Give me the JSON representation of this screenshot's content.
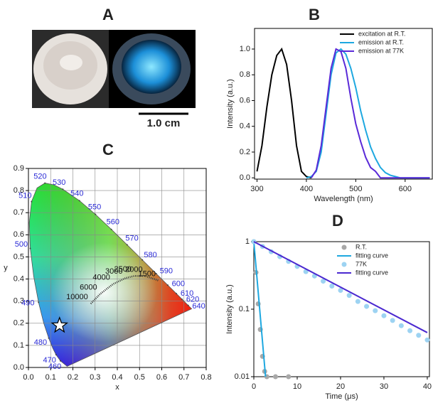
{
  "chart_data": [
    {
      "type": "photo",
      "label": "A",
      "scale_bar": "1.0 cm"
    },
    {
      "type": "line",
      "label": "B",
      "xlabel": "Wavelength (nm)",
      "ylabel": "Intensity (a.u.)",
      "x": [
        300,
        310,
        320,
        330,
        340,
        350,
        360,
        370,
        380,
        390,
        400,
        410,
        420,
        430,
        440,
        450,
        460,
        470,
        480,
        490,
        500,
        510,
        520,
        530,
        540,
        550,
        560,
        570,
        580,
        590,
        600,
        610,
        620,
        630,
        640,
        650
      ],
      "series": [
        {
          "name": "excitation at R.T.",
          "color": "#000000",
          "values": [
            0.05,
            0.25,
            0.55,
            0.8,
            0.95,
            1.0,
            0.88,
            0.6,
            0.25,
            0.05,
            0.01,
            0,
            null,
            null,
            null,
            null,
            null,
            null,
            null,
            null,
            null,
            null,
            null,
            null,
            null,
            null,
            null,
            null,
            null,
            null,
            null,
            null,
            null,
            null,
            null,
            null
          ]
        },
        {
          "name": "emission at R.T.",
          "color": "#1ea8e0",
          "values": [
            null,
            null,
            null,
            null,
            null,
            null,
            null,
            null,
            null,
            null,
            0,
            0.01,
            0.05,
            0.2,
            0.5,
            0.8,
            0.97,
            1.0,
            0.96,
            0.85,
            0.7,
            0.52,
            0.37,
            0.24,
            0.15,
            0.08,
            0.04,
            0.02,
            0.01,
            0,
            0,
            0,
            0,
            0,
            0,
            0
          ]
        },
        {
          "name": "emission at 77K",
          "color": "#5a2ad8",
          "values": [
            null,
            null,
            null,
            null,
            null,
            null,
            null,
            null,
            null,
            null,
            null,
            0,
            0.06,
            0.25,
            0.55,
            0.85,
            1.0,
            0.98,
            0.85,
            0.62,
            0.42,
            0.28,
            0.16,
            0.08,
            0.05,
            0,
            0,
            0,
            0,
            0,
            0,
            0,
            0,
            0,
            0,
            0
          ]
        }
      ],
      "xlim": [
        295,
        655
      ],
      "ylim": [
        -0.01,
        1.16
      ],
      "xticks": [
        300,
        400,
        500,
        600
      ],
      "yticks": [
        {
          "value": 0,
          "label": "0.0"
        },
        0.2,
        0.4,
        0.6,
        0.8,
        {
          "value": 1,
          "label": "1.0"
        }
      ],
      "legend": "upper right",
      "grid": false
    },
    {
      "type": "cie",
      "label": "C",
      "xlabel": "x",
      "ylabel": "y",
      "locus": {
        "x": [
          0.1741,
          0.144,
          0.1241,
          0.1096,
          0.0913,
          0.0687,
          0.0454,
          0.0235,
          0.0082,
          0.0039,
          0.0139,
          0.0389,
          0.0743,
          0.1142,
          0.1547,
          0.2296,
          0.3016,
          0.3731,
          0.4441,
          0.5125,
          0.5752,
          0.627,
          0.6658,
          0.6915,
          0.719,
          0.7347
        ],
        "y": [
          0.005,
          0.0297,
          0.0578,
          0.0868,
          0.1327,
          0.2007,
          0.295,
          0.4127,
          0.5384,
          0.6548,
          0.7502,
          0.812,
          0.8338,
          0.8262,
          0.8059,
          0.7543,
          0.6923,
          0.6245,
          0.5547,
          0.4866,
          0.4242,
          0.3725,
          0.334,
          0.3083,
          0.2809,
          0.2653
        ]
      },
      "wavelength_labels": [
        {
          "wavelength": 460,
          "x": 0.144,
          "y": 0.0297
        },
        {
          "wavelength": 470,
          "x": 0.1241,
          "y": 0.0578
        },
        {
          "wavelength": 480,
          "x": 0.0913,
          "y": 0.1327
        },
        {
          "wavelength": 490,
          "x": 0.0454,
          "y": 0.295
        },
        {
          "wavelength": 500,
          "x": 0.0082,
          "y": 0.5384
        },
        {
          "wavelength": 510,
          "x": 0.0139,
          "y": 0.7502
        },
        {
          "wavelength": 520,
          "x": 0.0743,
          "y": 0.8338
        },
        {
          "wavelength": 530,
          "x": 0.1547,
          "y": 0.8059
        },
        {
          "wavelength": 540,
          "x": 0.2296,
          "y": 0.7543
        },
        {
          "wavelength": 550,
          "x": 0.3016,
          "y": 0.6923
        },
        {
          "wavelength": 560,
          "x": 0.3731,
          "y": 0.6245
        },
        {
          "wavelength": 570,
          "x": 0.4441,
          "y": 0.5547
        },
        {
          "wavelength": 580,
          "x": 0.5125,
          "y": 0.4866
        },
        {
          "wavelength": 590,
          "x": 0.5752,
          "y": 0.4242
        },
        {
          "wavelength": 600,
          "x": 0.627,
          "y": 0.3725
        },
        {
          "wavelength": 610,
          "x": 0.6658,
          "y": 0.334
        },
        {
          "wavelength": 620,
          "x": 0.6915,
          "y": 0.3083
        },
        {
          "wavelength": 640,
          "x": 0.719,
          "y": 0.2809
        }
      ],
      "planck_labels": [
        {
          "temperature": 10000,
          "x": 0.2807,
          "y": 0.2883
        },
        {
          "temperature": 6000,
          "x": 0.3221,
          "y": 0.3318
        },
        {
          "temperature": 4000,
          "x": 0.3805,
          "y": 0.3768
        },
        {
          "temperature": 3000,
          "x": 0.4369,
          "y": 0.4041
        },
        {
          "temperature": 2500,
          "x": 0.4769,
          "y": 0.4137
        },
        {
          "temperature": 2000,
          "x": 0.5267,
          "y": 0.4133
        },
        {
          "temperature": 1500,
          "x": 0.5857,
          "y": 0.3931
        }
      ],
      "marker": {
        "x": 0.14,
        "y": 0.19
      },
      "xlim": [
        0,
        0.8
      ],
      "ylim": [
        0,
        0.9
      ],
      "xticks": [
        {
          "value": 0,
          "label": "0.0"
        },
        0.1,
        0.2,
        0.3,
        0.4,
        0.5,
        0.6,
        0.7,
        0.8
      ],
      "yticks": [
        {
          "value": 0,
          "label": "0.0"
        },
        0.1,
        0.2,
        0.3,
        0.4,
        0.5,
        0.6,
        0.7,
        0.8,
        0.9
      ],
      "grid": true
    },
    {
      "type": "decay",
      "label": "D",
      "xlabel": "Time (μs)",
      "ylabel": "Intensity (a.u.)",
      "series": [
        {
          "name": "R.T.",
          "color": "#a8a8a8",
          "mode": "markers",
          "x": [
            0,
            0.5,
            1,
            1.5,
            2,
            2.5,
            3,
            5,
            8
          ],
          "values": [
            1,
            0.35,
            0.12,
            0.05,
            0.02,
            0.012,
            0.01,
            0.01,
            0.01
          ]
        },
        {
          "name": "fitting curve",
          "color": "#1ea8e0",
          "mode": "line",
          "x": [
            0,
            2.7
          ],
          "values": [
            1,
            0.01
          ]
        },
        {
          "name": "77K",
          "color": "#9dd3f2",
          "mode": "markers",
          "x": [
            0,
            2,
            4,
            6,
            8,
            10,
            12,
            14,
            16,
            18,
            20,
            22,
            24,
            26,
            28,
            30,
            32,
            34,
            36,
            38,
            40
          ],
          "values": [
            1,
            0.85,
            0.71,
            0.6,
            0.51,
            0.43,
            0.36,
            0.31,
            0.26,
            0.22,
            0.19,
            0.16,
            0.13,
            0.11,
            0.095,
            0.08,
            0.068,
            0.057,
            0.048,
            0.041,
            0.035
          ]
        },
        {
          "name": "fitting curve",
          "color": "#4a28d0",
          "mode": "line",
          "x": [
            0,
            40
          ],
          "values": [
            1,
            0.045
          ]
        }
      ],
      "xlim": [
        0,
        40.5
      ],
      "ylim": [
        0.01,
        1
      ],
      "ylog": true,
      "xticks": [
        0,
        10,
        20,
        30,
        40
      ],
      "yticks": [
        0.01,
        0.1,
        1
      ],
      "legend": "upper right",
      "grid": false
    }
  ]
}
